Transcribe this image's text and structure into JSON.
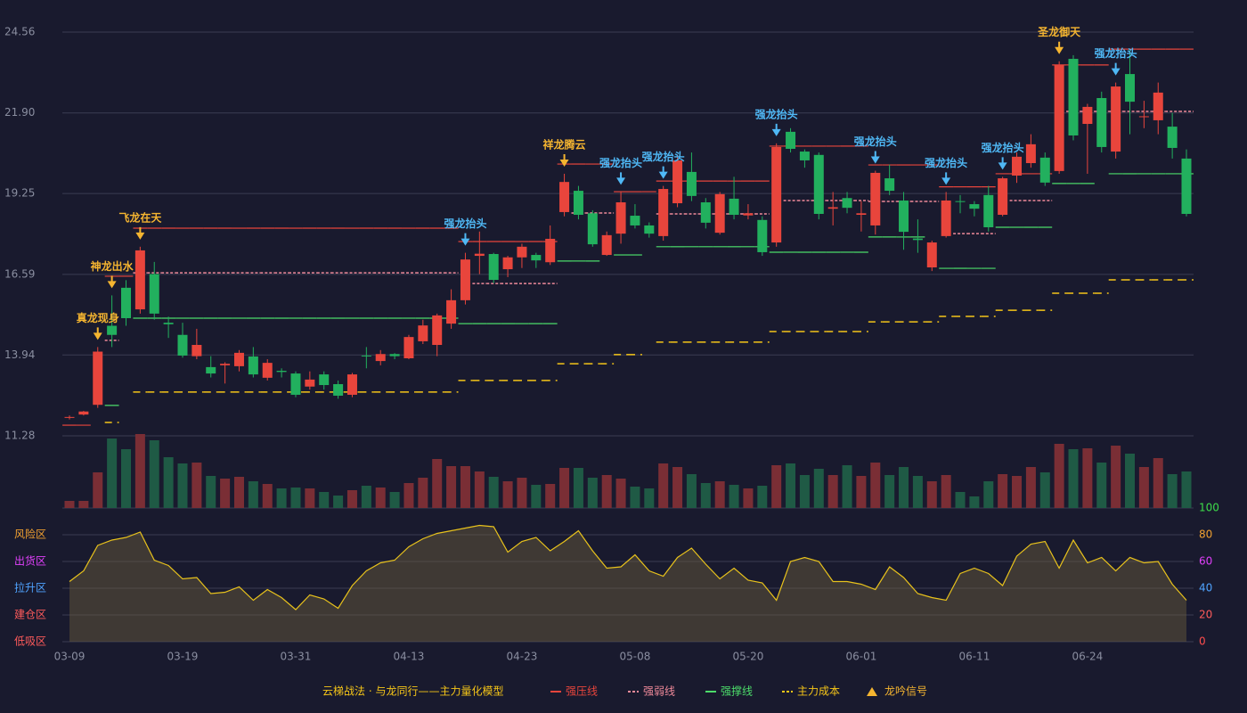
{
  "chart_data": [
    {
      "type": "candlestick",
      "categories": [
        "03-09",
        null,
        null,
        null,
        null,
        null,
        null,
        null,
        "03-19",
        null,
        null,
        null,
        null,
        null,
        null,
        null,
        "03-31",
        null,
        null,
        null,
        null,
        null,
        null,
        null,
        "04-13",
        null,
        null,
        null,
        null,
        null,
        null,
        null,
        "04-23",
        null,
        null,
        null,
        null,
        null,
        null,
        null,
        "05-08",
        null,
        null,
        null,
        null,
        null,
        null,
        null,
        "05-20",
        null,
        null,
        null,
        null,
        null,
        null,
        null,
        "06-01",
        null,
        null,
        null,
        null,
        null,
        null,
        null,
        "06-11",
        null,
        null,
        null,
        null,
        null,
        null,
        null,
        "06-24",
        null,
        null,
        null,
        null,
        null,
        null,
        null
      ],
      "open": [
        11.88,
        11.98,
        12.3,
        14.9,
        16.15,
        15.44,
        16.6,
        15.0,
        14.6,
        13.9,
        13.54,
        13.6,
        13.57,
        13.89,
        13.19,
        13.42,
        13.33,
        12.9,
        13.3,
        12.98,
        12.63,
        13.92,
        13.74,
        13.97,
        13.83,
        14.39,
        14.27,
        14.97,
        15.74,
        17.2,
        17.26,
        16.76,
        17.15,
        17.23,
        16.99,
        18.64,
        19.34,
        18.6,
        17.23,
        17.93,
        18.52,
        18.2,
        17.85,
        18.93,
        19.96,
        18.96,
        17.96,
        19.08,
        18.53,
        18.38,
        17.64,
        21.28,
        20.63,
        20.52,
        18.75,
        19.1,
        18.55,
        18.2,
        19.75,
        19.02,
        17.77,
        16.82,
        17.85,
        19.0,
        18.9,
        19.2,
        18.55,
        19.84,
        20.25,
        20.43,
        19.99,
        23.68,
        21.54,
        22.39,
        20.63,
        23.18,
        21.78,
        21.66,
        21.45,
        20.4
      ],
      "high": [
        11.95,
        12.1,
        14.2,
        15.9,
        16.4,
        17.5,
        17.0,
        15.2,
        15.0,
        14.8,
        13.9,
        13.7,
        14.1,
        14.2,
        13.8,
        13.5,
        13.4,
        13.4,
        13.4,
        13.1,
        13.35,
        14.2,
        14.1,
        14.0,
        14.6,
        15.1,
        15.3,
        16.1,
        17.3,
        18.0,
        17.3,
        17.2,
        17.6,
        17.3,
        18.2,
        19.9,
        19.5,
        18.7,
        18.0,
        19.3,
        18.9,
        18.3,
        19.5,
        20.5,
        20.6,
        19.1,
        19.3,
        19.8,
        18.9,
        18.5,
        20.9,
        21.4,
        20.7,
        20.6,
        19.3,
        19.3,
        19.0,
        20.0,
        20.2,
        19.3,
        18.4,
        17.7,
        19.3,
        19.2,
        19.0,
        19.5,
        19.8,
        20.6,
        21.2,
        20.6,
        23.6,
        23.8,
        22.2,
        22.6,
        22.9,
        24.0,
        22.3,
        22.9,
        21.9,
        20.7
      ],
      "low": [
        11.82,
        11.95,
        12.2,
        14.2,
        14.9,
        15.3,
        15.1,
        14.5,
        13.85,
        13.8,
        13.2,
        13.0,
        13.4,
        13.2,
        13.1,
        13.2,
        12.55,
        12.8,
        12.8,
        12.5,
        12.55,
        13.5,
        13.6,
        13.8,
        13.8,
        14.3,
        13.9,
        14.8,
        15.6,
        16.6,
        16.3,
        16.5,
        16.8,
        16.8,
        16.9,
        18.5,
        18.4,
        17.5,
        17.2,
        17.6,
        18.1,
        17.8,
        17.7,
        18.8,
        19.0,
        18.1,
        17.9,
        18.4,
        18.4,
        17.2,
        17.5,
        20.6,
        20.1,
        18.4,
        18.2,
        18.6,
        18.0,
        17.9,
        19.2,
        17.4,
        17.3,
        16.7,
        17.8,
        18.6,
        18.5,
        18.0,
        18.5,
        19.6,
        20.1,
        19.5,
        19.9,
        21.0,
        19.9,
        20.6,
        20.4,
        21.2,
        21.4,
        21.2,
        20.4,
        18.5
      ],
      "close": [
        11.9,
        12.08,
        14.05,
        14.6,
        15.15,
        17.38,
        15.3,
        14.95,
        13.92,
        14.27,
        13.33,
        13.65,
        14.01,
        13.3,
        13.68,
        13.38,
        12.63,
        13.13,
        12.95,
        12.6,
        13.3,
        13.9,
        13.97,
        13.9,
        14.53,
        14.91,
        15.24,
        15.74,
        17.08,
        17.27,
        16.41,
        17.15,
        17.5,
        17.05,
        17.76,
        19.63,
        18.55,
        17.58,
        17.88,
        18.96,
        18.2,
        17.93,
        19.4,
        20.34,
        19.17,
        18.29,
        19.23,
        18.55,
        18.6,
        17.32,
        20.78,
        20.72,
        20.34,
        18.58,
        18.8,
        18.78,
        18.6,
        19.93,
        19.34,
        17.99,
        17.72,
        17.64,
        19.02,
        18.99,
        18.75,
        18.14,
        19.75,
        20.46,
        20.87,
        19.61,
        23.48,
        21.16,
        22.1,
        20.78,
        22.77,
        22.27,
        21.79,
        22.57,
        20.75,
        18.58
      ],
      "up_color": "#e8453c",
      "down_color": "#22b05e",
      "ylim": [
        11.28,
        24.56
      ],
      "yticks": [
        {
          "value": 11.28,
          "label": "11.28"
        },
        {
          "value": 13.94,
          "label": "13.94"
        },
        {
          "value": 16.59,
          "label": "16.59"
        },
        {
          "value": 19.25,
          "label": "19.25"
        },
        {
          "value": 21.9,
          "label": "21.90"
        },
        {
          "value": 24.56,
          "label": "24.56"
        }
      ],
      "grid": true,
      "series": [
        {
          "name": "强压线",
          "color": "#e8453c",
          "dashed": false,
          "values": [
            11.63,
            11.63,
            null,
            16.53,
            16.53,
            18.11,
            18.11,
            18.11,
            18.11,
            18.11,
            18.11,
            18.11,
            18.11,
            18.11,
            18.11,
            18.11,
            18.11,
            18.11,
            18.11,
            18.11,
            18.11,
            18.11,
            18.11,
            18.11,
            18.11,
            18.11,
            18.11,
            18.11,
            17.67,
            17.67,
            17.67,
            17.67,
            17.67,
            17.67,
            17.67,
            20.22,
            20.22,
            20.22,
            20.22,
            19.31,
            19.31,
            19.31,
            19.66,
            19.66,
            19.66,
            19.66,
            19.66,
            19.66,
            19.66,
            19.66,
            20.81,
            20.81,
            20.81,
            20.81,
            20.81,
            20.81,
            20.81,
            20.19,
            20.19,
            20.19,
            20.19,
            20.19,
            19.47,
            19.47,
            19.47,
            19.47,
            19.9,
            19.9,
            19.9,
            19.9,
            23.48,
            23.48,
            23.48,
            23.48,
            24.0,
            24.0,
            24.0,
            24.0,
            24.0,
            24.0
          ]
        },
        {
          "name": "强弱线",
          "color": "#f08a9a",
          "dashed": true,
          "values": [
            null,
            null,
            null,
            14.42,
            null,
            16.64,
            16.64,
            16.64,
            16.64,
            16.64,
            16.64,
            16.64,
            16.64,
            16.64,
            16.64,
            16.64,
            16.64,
            16.64,
            16.64,
            16.64,
            16.64,
            16.64,
            16.64,
            16.64,
            16.64,
            16.64,
            16.64,
            16.64,
            null,
            16.29,
            16.29,
            16.29,
            16.29,
            16.29,
            16.29,
            null,
            18.61,
            18.61,
            18.61,
            null,
            null,
            null,
            18.58,
            18.58,
            18.58,
            18.58,
            18.58,
            18.58,
            18.58,
            18.58,
            null,
            19.02,
            19.02,
            19.02,
            19.02,
            19.02,
            19.02,
            18.99,
            18.99,
            18.99,
            18.99,
            18.99,
            null,
            17.93,
            17.93,
            17.93,
            null,
            19.02,
            19.02,
            19.02,
            null,
            21.95,
            21.95,
            21.95,
            21.95,
            21.95,
            21.95,
            21.95,
            21.95,
            21.95
          ]
        },
        {
          "name": "强撑线",
          "color": "#4cdc6a",
          "dashed": false,
          "values": [
            null,
            null,
            null,
            12.28,
            null,
            15.15,
            15.15,
            15.15,
            15.15,
            15.15,
            15.15,
            15.15,
            15.15,
            15.15,
            15.15,
            15.15,
            15.15,
            15.15,
            15.15,
            15.15,
            15.15,
            15.15,
            15.15,
            15.15,
            15.15,
            15.15,
            15.15,
            15.15,
            14.97,
            14.97,
            14.97,
            14.97,
            14.97,
            14.97,
            14.97,
            17.03,
            17.03,
            17.03,
            null,
            17.23,
            17.23,
            null,
            17.5,
            17.5,
            17.5,
            17.5,
            17.5,
            17.5,
            17.5,
            17.5,
            17.32,
            17.32,
            17.32,
            17.32,
            17.32,
            17.32,
            17.32,
            17.82,
            17.82,
            17.82,
            17.82,
            null,
            16.79,
            16.79,
            16.79,
            16.79,
            18.14,
            18.14,
            18.14,
            18.14,
            19.58,
            19.58,
            19.58,
            null,
            19.9,
            19.9,
            19.9,
            19.9,
            19.9,
            19.9
          ]
        },
        {
          "name": "主力成本",
          "color": "#f5c518",
          "dashed": true,
          "values": [
            null,
            null,
            null,
            11.72,
            null,
            12.72,
            12.72,
            12.72,
            12.72,
            12.72,
            12.72,
            12.72,
            12.72,
            12.72,
            12.72,
            12.72,
            12.72,
            12.72,
            12.72,
            12.72,
            12.72,
            12.72,
            12.72,
            12.72,
            12.72,
            12.72,
            12.72,
            12.72,
            13.1,
            13.1,
            13.1,
            13.1,
            13.1,
            13.1,
            13.1,
            13.65,
            13.65,
            13.65,
            13.65,
            13.95,
            13.95,
            null,
            14.36,
            14.36,
            14.36,
            14.36,
            14.36,
            14.36,
            14.36,
            14.36,
            14.71,
            14.71,
            14.71,
            14.71,
            14.71,
            14.71,
            14.71,
            15.03,
            15.03,
            15.03,
            15.03,
            15.03,
            15.21,
            15.21,
            15.21,
            15.21,
            15.41,
            15.41,
            15.41,
            15.41,
            15.97,
            15.97,
            15.97,
            15.97,
            16.41,
            16.41,
            16.41,
            16.41,
            16.41,
            16.41
          ]
        }
      ],
      "signals": [
        null,
        null,
        {
          "label": "真龙现身",
          "color": "#f5b530"
        },
        {
          "label": "神龙出水",
          "color": "#f5b530"
        },
        null,
        {
          "label": "飞龙在天",
          "color": "#f5b530"
        },
        null,
        null,
        null,
        null,
        null,
        null,
        null,
        null,
        null,
        null,
        null,
        null,
        null,
        null,
        null,
        null,
        null,
        null,
        null,
        null,
        null,
        null,
        {
          "label": "强龙抬头",
          "color": "#4fb8f5"
        },
        null,
        null,
        null,
        null,
        null,
        null,
        {
          "label": "祥龙腾云",
          "color": "#f5b530"
        },
        null,
        null,
        null,
        {
          "label": "强龙抬头",
          "color": "#4fb8f5"
        },
        null,
        null,
        {
          "label": "强龙抬头",
          "color": "#4fb8f5"
        },
        null,
        null,
        null,
        null,
        null,
        null,
        null,
        {
          "label": "强龙抬头",
          "color": "#4fb8f5"
        },
        null,
        null,
        null,
        null,
        null,
        null,
        {
          "label": "强龙抬头",
          "color": "#4fb8f5"
        },
        null,
        null,
        null,
        null,
        {
          "label": "强龙抬头",
          "color": "#4fb8f5"
        },
        null,
        null,
        null,
        {
          "label": "强龙抬头",
          "color": "#4fb8f5"
        },
        null,
        null,
        null,
        {
          "label": "圣龙御天",
          "color": "#f5b530"
        },
        null,
        null,
        null,
        {
          "label": "强龙抬头",
          "color": "#4fb8f5"
        },
        null,
        null,
        null,
        null,
        null
      ],
      "signals_name": "龙吟信号",
      "signals_color": "#f5b530",
      "legend_title": "云梯战法 · 与龙同行——主力量化模型"
    },
    {
      "type": "volume",
      "values": [
        8,
        8,
        40,
        78,
        66,
        83,
        76,
        57,
        50,
        51,
        36,
        33,
        35,
        30,
        27,
        22,
        23,
        22,
        18,
        14,
        20,
        25,
        23,
        18,
        28,
        34,
        55,
        47,
        47,
        41,
        35,
        30,
        34,
        26,
        27,
        45,
        45,
        34,
        37,
        33,
        24,
        22,
        50,
        46,
        38,
        28,
        30,
        26,
        22,
        25,
        48,
        50,
        37,
        44,
        37,
        48,
        36,
        51,
        37,
        46,
        36,
        30,
        37,
        18,
        13,
        30,
        38,
        36,
        46,
        40,
        72,
        66,
        67,
        51,
        70,
        61,
        46,
        56,
        38,
        41
      ],
      "up_color": "#7a2e35",
      "down_color": "#1f5a45",
      "ylim": [
        0,
        85
      ]
    },
    {
      "type": "area",
      "values": [
        45,
        53,
        72,
        76,
        78,
        82,
        61,
        57,
        47,
        48,
        36,
        37,
        41,
        31,
        39,
        33,
        24,
        35,
        32,
        25,
        42,
        53,
        59,
        61,
        71,
        77,
        81,
        83,
        85,
        87,
        86,
        67,
        75,
        78,
        68,
        75,
        83,
        68,
        55,
        56,
        65,
        53,
        49,
        63,
        70,
        58,
        47,
        55,
        46,
        44,
        31,
        60,
        63,
        60,
        45,
        45,
        43,
        39,
        56,
        48,
        36,
        33,
        31,
        51,
        55,
        51,
        42,
        64,
        73,
        75,
        55,
        76,
        59,
        63,
        53,
        63,
        59,
        60,
        43,
        31
      ],
      "color": "#e8c21c",
      "ylim": [
        0,
        100
      ],
      "yticks": [
        0,
        20,
        40,
        60,
        80,
        100
      ],
      "ytick_colors": [
        "#ff4d4d",
        "#ff5b5b",
        "#4fa3ff",
        "#e040fb",
        "#f0a030",
        "#3ddc4a"
      ],
      "zones": [
        {
          "label": "风险区",
          "value": 80,
          "color": "#f0a030"
        },
        {
          "label": "出货区",
          "value": 60,
          "color": "#e040fb"
        },
        {
          "label": "拉升区",
          "value": 40,
          "color": "#4fa3ff"
        },
        {
          "label": "建仓区",
          "value": 20,
          "color": "#ff5b5b"
        },
        {
          "label": "低吸区",
          "value": 0,
          "color": "#ff5b5b"
        }
      ]
    }
  ]
}
